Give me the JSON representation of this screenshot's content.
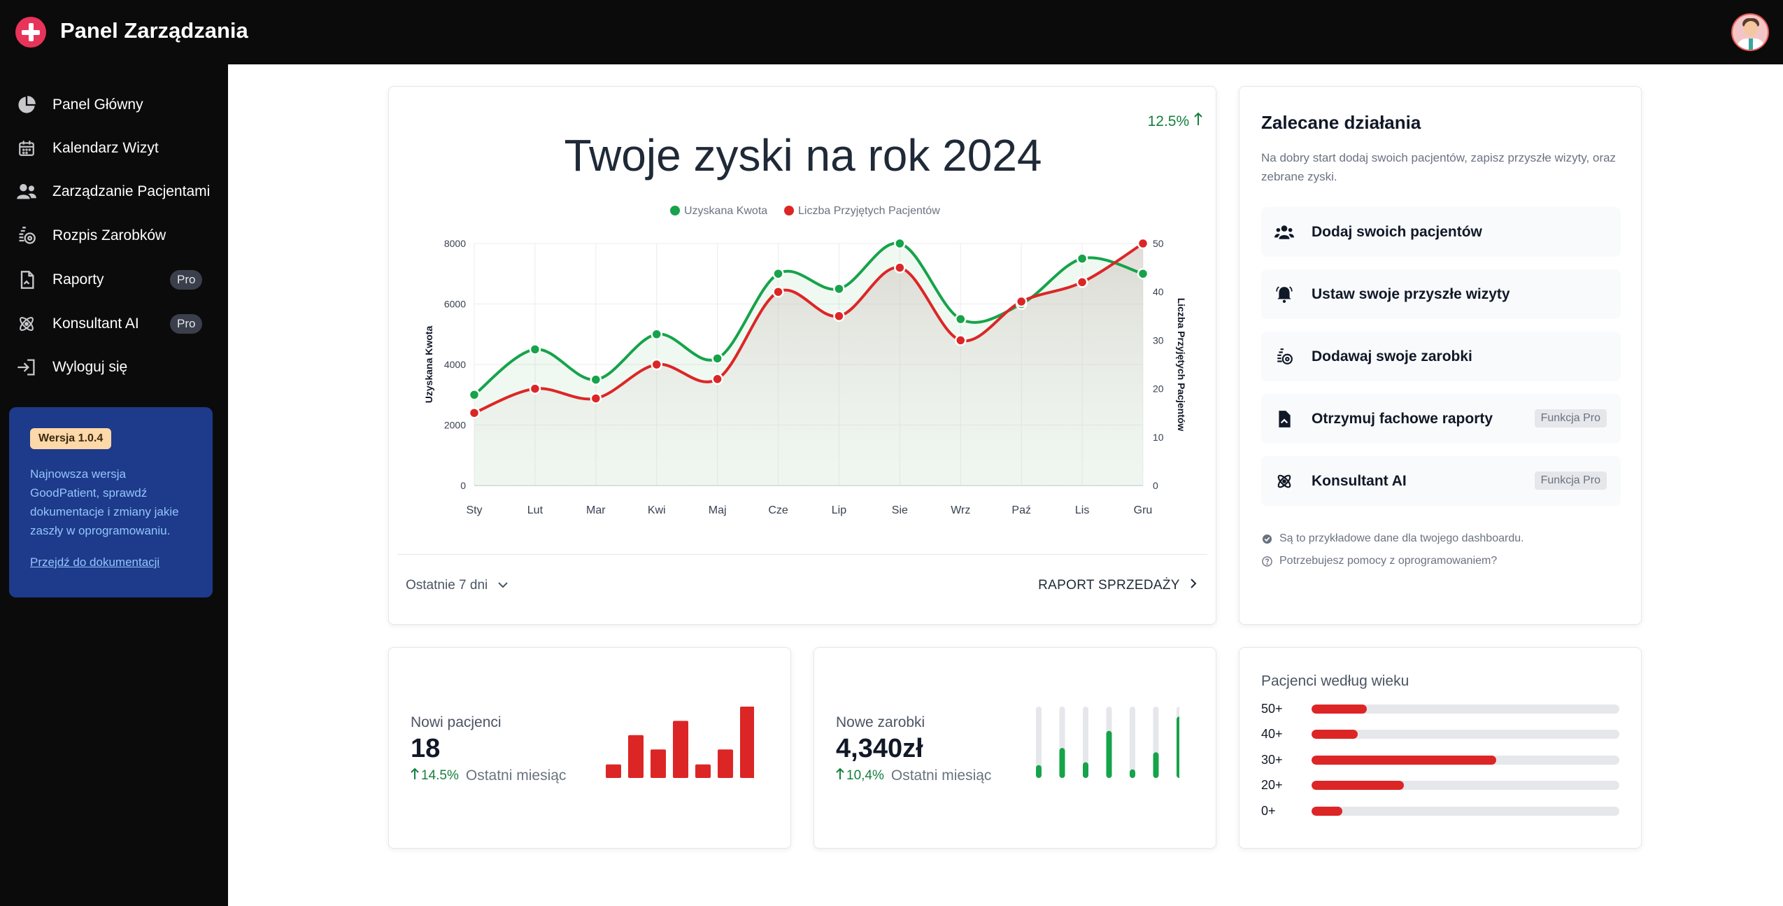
{
  "app": {
    "title": "Panel Zarządzania"
  },
  "sidebar": {
    "items": [
      {
        "label": "Panel Główny",
        "icon": "pie-chart-icon"
      },
      {
        "label": "Kalendarz Wizyt",
        "icon": "calendar-icon"
      },
      {
        "label": "Zarządzanie Pacjentami",
        "icon": "users-icon"
      },
      {
        "label": "Rozpis Zarobków",
        "icon": "coins-icon"
      },
      {
        "label": "Raporty",
        "icon": "report-icon",
        "badge": "Pro"
      },
      {
        "label": "Konsultant AI",
        "icon": "atom-icon",
        "badge": "Pro"
      },
      {
        "label": "Wyloguj się",
        "icon": "logout-icon"
      }
    ],
    "version": {
      "badge": "Wersja 1.0.4",
      "text": "Najnowsza wersja GoodPatient, sprawdź dokumentacje i zmiany jakie zaszły w oprogramowaniu.",
      "link": "Przejdź do dokumentacji"
    }
  },
  "profit": {
    "change": "12.5%",
    "footer_left": "Ostatnie 7 dni",
    "footer_right": "RAPORT SPRZEDAŻY"
  },
  "chart_data": {
    "type": "line",
    "title": "Twoje zyski na rok 2024",
    "categories": [
      "Sty",
      "Lut",
      "Mar",
      "Kwi",
      "Maj",
      "Cze",
      "Lip",
      "Sie",
      "Wrz",
      "Paź",
      "Lis",
      "Gru"
    ],
    "series": [
      {
        "name": "Uzyskana Kwota",
        "axis": "left",
        "color": "#16a34a",
        "values": [
          3000,
          4500,
          3500,
          5000,
          4200,
          7000,
          6500,
          8000,
          5500,
          6000,
          7500,
          7000
        ]
      },
      {
        "name": "Liczba Przyjętych Pacjentów",
        "axis": "right",
        "color": "#dc2626",
        "values": [
          15,
          20,
          18,
          25,
          22,
          40,
          35,
          45,
          30,
          38,
          42,
          50
        ]
      }
    ],
    "ylabel": "Uzyskana Kwota",
    "y2label": "Liczba Przyjętych Pacjentów",
    "ylim": [
      0,
      8000
    ],
    "y2lim": [
      0,
      50
    ],
    "yticks": [
      "8000",
      "6000",
      "4000",
      "2000",
      "0"
    ],
    "y2ticks": [
      "50",
      "40",
      "30",
      "20",
      "10",
      "0"
    ],
    "legend": "top-center",
    "grid": true
  },
  "actions": {
    "title": "Zalecane działania",
    "description": "Na dobry start dodaj swoich pacjentów, zapisz przyszłe wizyty, oraz zebrane zyski.",
    "items": [
      {
        "label": "Dodaj swoich pacjentów",
        "icon": "users-icon"
      },
      {
        "label": "Ustaw swoje przyszłe wizyty",
        "icon": "bell-icon"
      },
      {
        "label": "Dodawaj swoje zarobki",
        "icon": "coins-icon"
      },
      {
        "label": "Otrzymuj fachowe raporty",
        "icon": "report-icon",
        "badge": "Funkcja Pro"
      },
      {
        "label": "Konsultant AI",
        "icon": "atom-icon",
        "badge": "Funkcja Pro"
      }
    ],
    "note1": "Są to przykładowe dane dla twojego dashboardu.",
    "note2": "Potrzebujesz pomocy z oprogramowaniem?"
  },
  "new_patients": {
    "label": "Nowi pacjenci",
    "value": "18",
    "change": "14.5%",
    "period": "Ostatni miesiąc",
    "bars": [
      0.19,
      0.6,
      0.4,
      0.8,
      0.19,
      0.4,
      1.0
    ],
    "color": "#dc2626"
  },
  "new_earnings": {
    "label": "Nowe zarobki",
    "value": "4,340zł",
    "change": "10,4%",
    "period": "Ostatni miesiąc",
    "bars": [
      0.18,
      0.42,
      0.22,
      0.66,
      0.12,
      0.36,
      0.86
    ],
    "color": "#16a34a"
  },
  "age": {
    "title": "Pacjenci według wieku",
    "groups": [
      {
        "label": "50+",
        "value": 0.18
      },
      {
        "label": "40+",
        "value": 0.15
      },
      {
        "label": "30+",
        "value": 0.6
      },
      {
        "label": "20+",
        "value": 0.3
      },
      {
        "label": "0+",
        "value": 0.1
      }
    ]
  }
}
